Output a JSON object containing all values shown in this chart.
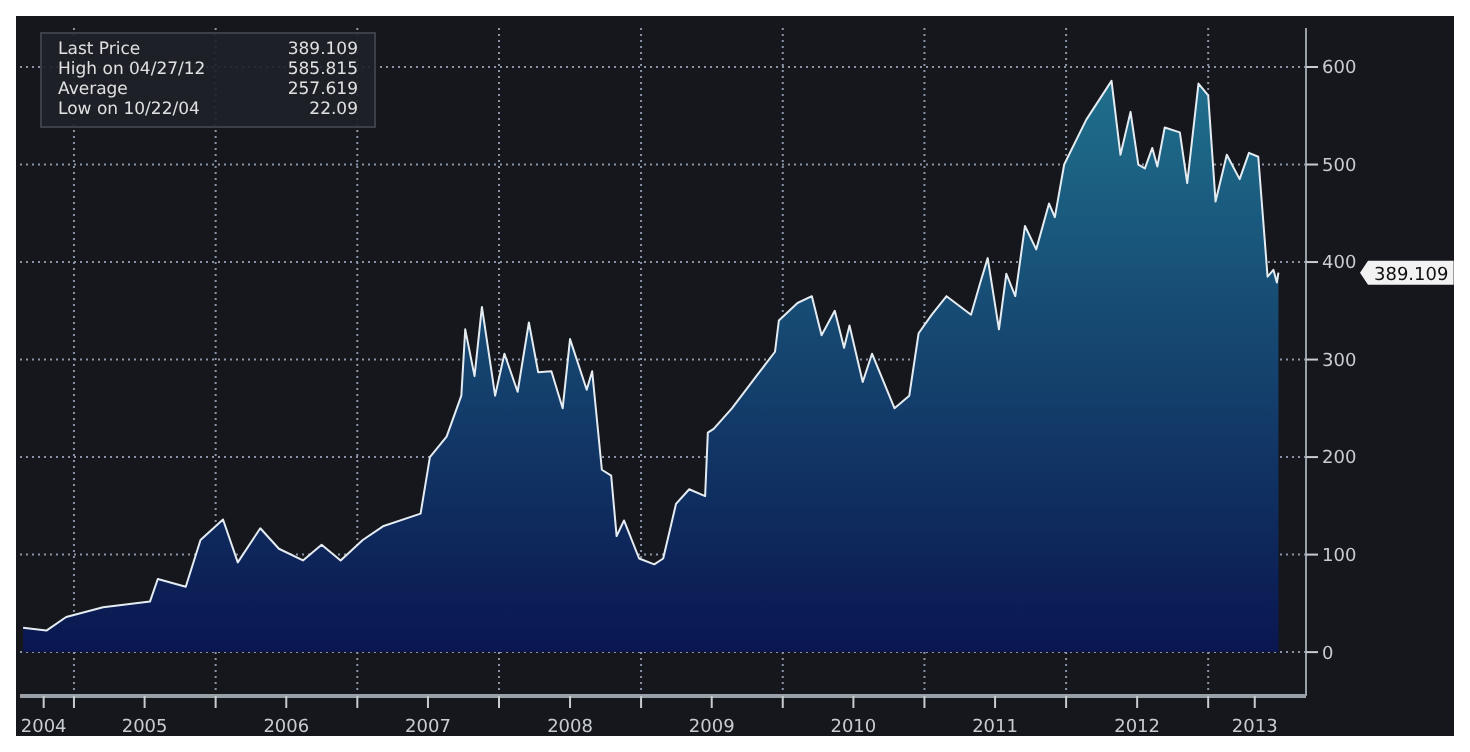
{
  "chart_data": {
    "type": "area",
    "x": [
      "2004-08-23",
      "2004-10-22",
      "2004-12-12",
      "2005-03-17",
      "2005-07-16",
      "2005-08-05",
      "2005-10-16",
      "2005-11-23",
      "2006-01-20",
      "2006-02-27",
      "2006-04-26",
      "2006-06-13",
      "2006-08-14",
      "2006-10-01",
      "2006-11-19",
      "2007-01-15",
      "2007-03-08",
      "2007-06-13",
      "2007-07-07",
      "2007-08-19",
      "2007-09-26",
      "2007-10-06",
      "2007-10-30",
      "2007-11-18",
      "2007-12-22",
      "2008-01-15",
      "2008-02-18",
      "2008-03-18",
      "2008-04-11",
      "2008-05-15",
      "2008-06-13",
      "2008-07-02",
      "2008-08-14",
      "2008-08-28",
      "2008-09-22",
      "2008-10-16",
      "2008-10-30",
      "2008-11-18",
      "2008-12-27",
      "2009-02-04",
      "2009-02-27",
      "2009-04-01",
      "2009-05-05",
      "2009-06-15",
      "2009-06-22",
      "2009-07-07",
      "2009-08-23",
      "2009-10-25",
      "2009-12-12",
      "2009-12-22",
      "2010-02-08",
      "2010-03-17",
      "2010-04-11",
      "2010-05-15",
      "2010-06-08",
      "2010-06-22",
      "2010-07-26",
      "2010-08-19",
      "2010-10-16",
      "2010-11-23",
      "2010-12-17",
      "2011-01-20",
      "2011-02-27",
      "2011-05-01",
      "2011-05-25",
      "2011-06-13",
      "2011-07-12",
      "2011-07-31",
      "2011-08-23",
      "2011-09-17",
      "2011-10-16",
      "2011-11-18",
      "2011-12-03",
      "2011-12-27",
      "2012-02-22",
      "2012-04-27",
      "2012-05-20",
      "2012-06-15",
      "2012-07-05",
      "2012-07-22",
      "2012-08-10",
      "2012-08-23",
      "2012-09-11",
      "2012-10-20",
      "2012-11-08",
      "2012-12-07",
      "2013-01-01",
      "2013-01-20",
      "2013-02-18",
      "2013-03-23",
      "2013-04-16",
      "2013-05-10",
      "2013-06-03",
      "2013-06-18",
      "2013-06-27",
      "2013-07-01"
    ],
    "series": [
      {
        "color": "#1f6f8c",
        "values": [
          25,
          22.09,
          36,
          46,
          52,
          75,
          67,
          115,
          136,
          92,
          127,
          106,
          94,
          110,
          94,
          115,
          129,
          142,
          200,
          221,
          263,
          331,
          283,
          354,
          263,
          306,
          267,
          338,
          287,
          288,
          250,
          321,
          269,
          288,
          187,
          181,
          119,
          135,
          96,
          90,
          96,
          152,
          167,
          160,
          225,
          229,
          250,
          283,
          308,
          340,
          358,
          365,
          325,
          350,
          312,
          335,
          277,
          306,
          250,
          263,
          327,
          346,
          365,
          346,
          379,
          404,
          331,
          388,
          365,
          437,
          413,
          460,
          446,
          500,
          546,
          585.815,
          510,
          554,
          500,
          496,
          517,
          498,
          538,
          533,
          481,
          583,
          571,
          462,
          510,
          485,
          512,
          508,
          385,
          392,
          379,
          389.109
        ]
      }
    ],
    "xlim": [
      "2004-08-15",
      "2013-09-10"
    ],
    "xticks": [
      {
        "value": "2004-10-15",
        "label": "2004"
      },
      {
        "value": "2005-01-01",
        "label": null
      },
      {
        "value": "2005-07-02",
        "label": "2005"
      },
      {
        "value": "2006-01-01",
        "label": null
      },
      {
        "value": "2006-07-02",
        "label": "2006"
      },
      {
        "value": "2007-01-01",
        "label": null
      },
      {
        "value": "2007-07-02",
        "label": "2007"
      },
      {
        "value": "2008-01-01",
        "label": null
      },
      {
        "value": "2008-07-02",
        "label": "2008"
      },
      {
        "value": "2009-01-01",
        "label": null
      },
      {
        "value": "2009-07-02",
        "label": "2009"
      },
      {
        "value": "2010-01-01",
        "label": null
      },
      {
        "value": "2010-07-02",
        "label": "2010"
      },
      {
        "value": "2011-01-01",
        "label": null
      },
      {
        "value": "2011-07-02",
        "label": "2011"
      },
      {
        "value": "2012-01-01",
        "label": null
      },
      {
        "value": "2012-07-02",
        "label": "2012"
      },
      {
        "value": "2013-01-01",
        "label": null
      },
      {
        "value": "2013-05-01",
        "label": "2013"
      }
    ],
    "ylim": [
      -45,
      640
    ],
    "yticks": [
      0,
      100,
      200,
      300,
      400,
      500,
      600
    ],
    "grid": true,
    "annotations": [
      "Last Price 389.109",
      "High on 04/27/12 585.815",
      "Average 257.619",
      "Low on 10/22/04 22.09",
      "389.109"
    ]
  }
}
